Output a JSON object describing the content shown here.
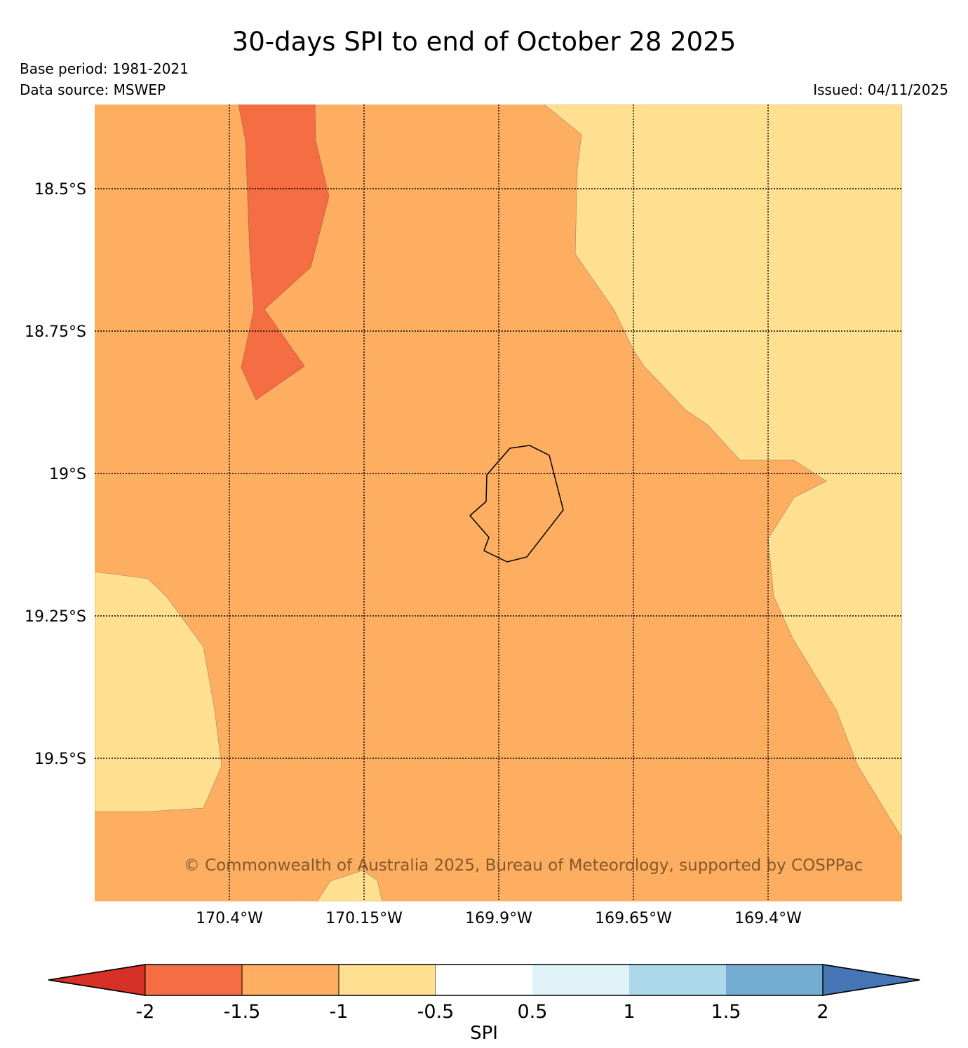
{
  "title": "30-days SPI to end of October 28 2025",
  "base_period": "Base period: 1981-2021",
  "data_source": "Data source: MSWEP",
  "issued": "Issued: 04/11/2025",
  "copyright": "© Commonwealth of Australia 2025, Bureau of Meteorology, supported by COSPPac",
  "map": {
    "lat_labels": [
      "18.5°S",
      "18.75°S",
      "19°S",
      "19.25°S",
      "19.5°S"
    ],
    "lon_labels": [
      "170.4°W",
      "170.15°W",
      "169.9°W",
      "169.65°W",
      "169.4°W"
    ],
    "regions": [
      {
        "class": "-1.5 to -1",
        "color": "#fdae61"
      },
      {
        "class": "-1 to -0.5",
        "color": "#fee090"
      },
      {
        "class": "-2 to -1.5",
        "color": "#f46d43"
      }
    ],
    "coastline": "Niue"
  },
  "colorbar": {
    "label": "SPI",
    "ticks": [
      "-2",
      "-1.5",
      "-1",
      "-0.5",
      "0.5",
      "1",
      "1.5",
      "2"
    ],
    "colors": [
      "#d73027",
      "#f46d43",
      "#fdae61",
      "#fee090",
      "#ffffff",
      "#e0f3f8",
      "#abd9e9",
      "#74add1",
      "#4575b4"
    ]
  }
}
